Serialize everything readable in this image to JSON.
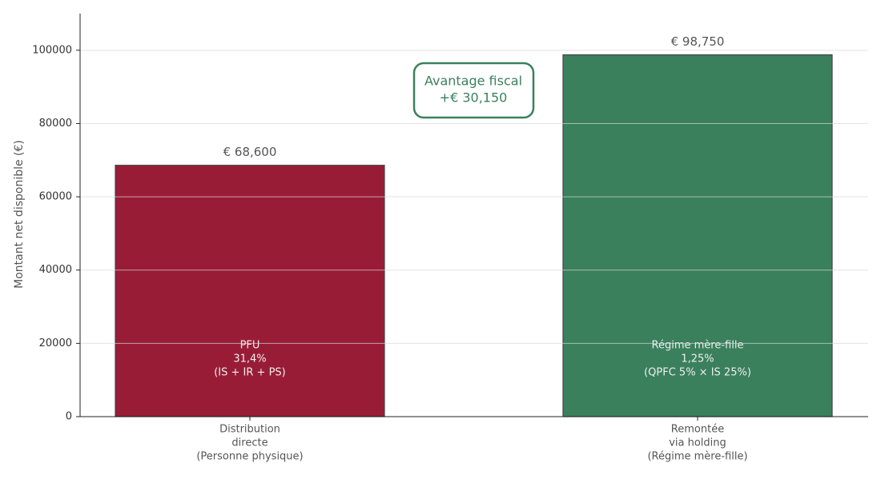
{
  "chart_data": {
    "type": "bar",
    "y_label": "Montant net disponible (€)",
    "categories": [
      [
        "Distribution",
        "directe",
        "(Personne physique)"
      ],
      [
        "Remontée",
        "via holding",
        "(Régime mère-fille)"
      ]
    ],
    "values": [
      68600,
      98750
    ],
    "value_labels": [
      "€ 68,600",
      "€ 98,750"
    ],
    "colors": [
      "#991c36",
      "#3a805d"
    ],
    "bar_annotations": [
      [
        "PFU",
        "31,4%",
        "(IS + IR + PS)"
      ],
      [
        "Régime mère-fille",
        "1,25%",
        "(QPFC 5% × IS 25%)"
      ]
    ],
    "callout": [
      "Avantage fiscal",
      "+€ 30,150"
    ],
    "ylim": [
      0,
      110000
    ],
    "yticks": [
      0,
      20000,
      40000,
      60000,
      80000,
      100000
    ],
    "grid": true
  }
}
